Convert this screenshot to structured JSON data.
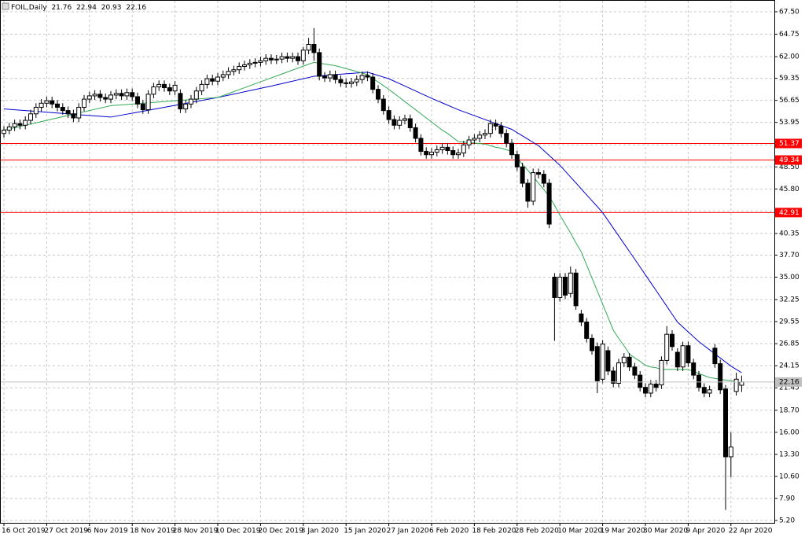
{
  "chart_data": {
    "type": "candlestick",
    "title": "FOIL,Daily",
    "categories": [
      "16 Oct 2019",
      null,
      null,
      null,
      null,
      null,
      null,
      null,
      "27 Oct 2019",
      null,
      null,
      null,
      null,
      null,
      null,
      null,
      "6 Nov 2019",
      null,
      null,
      null,
      null,
      null,
      null,
      null,
      "18 Nov 2019",
      null,
      null,
      null,
      null,
      null,
      null,
      null,
      "28 Nov 2019",
      null,
      null,
      null,
      null,
      null,
      null,
      null,
      "10 Dec 2019",
      null,
      null,
      null,
      null,
      null,
      null,
      null,
      "20 Dec 2019",
      null,
      null,
      null,
      null,
      null,
      null,
      null,
      "3 Jan 2020",
      null,
      null,
      null,
      null,
      null,
      null,
      null,
      "15 Jan 2020",
      null,
      null,
      null,
      null,
      null,
      null,
      null,
      "27 Jan 2020",
      null,
      null,
      null,
      null,
      null,
      null,
      null,
      "6 Feb 2020",
      null,
      null,
      null,
      null,
      null,
      null,
      null,
      "18 Feb 2020",
      null,
      null,
      null,
      null,
      null,
      null,
      null,
      "28 Feb 2020",
      null,
      null,
      null,
      null,
      null,
      null,
      null,
      "10 Mar 2020",
      null,
      null,
      null,
      null,
      null,
      null,
      null,
      "19 Mar 2020",
      null,
      null,
      null,
      null,
      null,
      null,
      null,
      "30 Mar 2020",
      null,
      null,
      null,
      null,
      null,
      null,
      null,
      "9 Apr 2020",
      null,
      null,
      null,
      null,
      null,
      null,
      null,
      "22 Apr 2020",
      null,
      null
    ],
    "open": [
      52.6,
      53,
      53.4,
      53.8,
      53.6,
      54.2,
      55,
      55.8,
      56.3,
      56.6,
      56.2,
      55.8,
      55.4,
      55,
      54.5,
      55.8,
      56.8,
      57.2,
      57.4,
      57,
      56.8,
      57.3,
      57.5,
      57.2,
      57.6,
      57.1,
      56.2,
      55.5,
      57.4,
      58.3,
      58.6,
      58.2,
      57.8,
      57.5,
      55.6,
      56.2,
      56.8,
      57.8,
      58.6,
      59.3,
      59,
      59.5,
      59.8,
      60.2,
      60.4,
      60.8,
      61,
      61.2,
      61.3,
      61.5,
      61.8,
      61.6,
      61.7,
      62,
      61.8,
      62,
      61.5,
      62.8,
      63.5,
      62.5,
      59.6,
      59.4,
      59.8,
      59.2,
      58.8,
      58.7,
      58.9,
      59.2,
      59.7,
      59.5,
      58,
      56.8,
      55.4,
      54.3,
      53.6,
      54.2,
      54.4,
      53.3,
      52,
      50.4,
      50,
      50.3,
      50.6,
      50.9,
      50.5,
      50,
      50.2,
      51.2,
      51.8,
      52,
      52.4,
      52.6,
      53.8,
      53.5,
      52.6,
      51.4,
      50,
      48.5,
      46.5,
      44.3,
      47.8,
      47.6,
      46.5,
      35,
      32.5,
      35,
      33,
      35.5,
      30.5,
      29.5,
      27.5,
      26.5,
      22.5,
      26,
      23.5,
      22,
      24.5,
      25.2,
      24,
      23,
      21.5,
      20.8,
      21.9,
      21.8,
      24.8,
      28,
      25.8,
      24,
      26.6,
      24.5,
      23,
      21.5,
      20.8,
      26.3,
      24.4,
      21.3,
      13,
      21,
      21.76
    ],
    "high": [
      53.5,
      53.9,
      54.3,
      54.3,
      54.7,
      55.5,
      56.3,
      56.8,
      57.1,
      57.1,
      56.7,
      56.3,
      55.9,
      55.5,
      56.3,
      57.3,
      57.7,
      57.9,
      57.9,
      57.5,
      57.8,
      58,
      58,
      58.1,
      58.1,
      57.6,
      56.7,
      57.9,
      58.8,
      59.1,
      59.1,
      58.7,
      59,
      58,
      56.7,
      57.3,
      58.3,
      59.1,
      59.8,
      59.8,
      60,
      60.3,
      60.7,
      60.9,
      61.3,
      61.5,
      61.7,
      61.8,
      62,
      62.3,
      62.3,
      62.2,
      62.5,
      62.5,
      62.5,
      62.5,
      63.2,
      64.3,
      65.5,
      63,
      60.1,
      60.3,
      60.3,
      59.7,
      59.3,
      59.4,
      59.7,
      60.2,
      60.2,
      60,
      58.5,
      57.3,
      55.9,
      54.8,
      54.7,
      54.9,
      54.9,
      53.8,
      52.5,
      50.9,
      50.8,
      51.1,
      51.4,
      51.4,
      51,
      50.7,
      51.7,
      52.3,
      52.5,
      52.9,
      53.1,
      54.3,
      54.3,
      54,
      53.1,
      51.9,
      50.5,
      49,
      47,
      48.3,
      48.3,
      48.1,
      47,
      35.5,
      35.5,
      35.5,
      36.3,
      36,
      31,
      30,
      28,
      27,
      27.3,
      26.5,
      24,
      25,
      25.7,
      25.7,
      24.5,
      23.5,
      22,
      22.4,
      22.4,
      25.3,
      29,
      28.5,
      26.3,
      27.1,
      27.1,
      25,
      23.5,
      22,
      21.7,
      26.8,
      24.9,
      21.8,
      16,
      23.3,
      22.94
    ],
    "low": [
      52.1,
      52.5,
      52.9,
      53.1,
      53.1,
      53.7,
      54.5,
      55.3,
      55.8,
      55.7,
      55.3,
      54.9,
      54.5,
      54,
      54,
      55.3,
      56.3,
      56.7,
      56.5,
      56.3,
      56.3,
      56.8,
      56.7,
      56.7,
      56.6,
      55.7,
      55,
      55,
      56.9,
      57.8,
      57.7,
      57.3,
      57.3,
      55.1,
      55.1,
      55.7,
      56.3,
      57.3,
      58.1,
      58.5,
      58.5,
      59,
      59.3,
      59.7,
      59.9,
      60.3,
      60.5,
      60.7,
      60.8,
      61,
      61.1,
      61.1,
      61.2,
      61.3,
      61.3,
      61,
      61,
      62.3,
      61.5,
      59.1,
      58.9,
      58.9,
      58.7,
      58.3,
      58.2,
      58.2,
      58.4,
      58.7,
      59,
      57.5,
      56.3,
      54.9,
      53.8,
      53.1,
      53.1,
      53.7,
      52.8,
      51.5,
      49.9,
      49.5,
      49.5,
      49.8,
      50.1,
      50,
      49.5,
      49.5,
      49.7,
      50.7,
      51.3,
      51.5,
      51.9,
      52.1,
      53,
      52.1,
      50.9,
      49.5,
      48,
      46,
      43.5,
      43.8,
      47.1,
      46,
      41,
      27.2,
      32,
      32.3,
      32.5,
      31,
      29,
      27,
      25.5,
      20.8,
      22,
      23,
      21.5,
      21.5,
      24,
      23.5,
      22.5,
      21,
      20.3,
      20.3,
      21,
      21.3,
      24.3,
      26,
      23.5,
      23.5,
      24,
      22.5,
      21,
      20.3,
      20.3,
      23.9,
      20.7,
      6.5,
      10.5,
      20.5,
      20.93
    ],
    "close": [
      53,
      53.4,
      53.8,
      53.6,
      54.2,
      55,
      55.8,
      56.3,
      56.6,
      56.2,
      55.8,
      55.4,
      55,
      54.5,
      55.8,
      56.8,
      57.2,
      57.4,
      57,
      56.8,
      57.3,
      57.5,
      57.2,
      57.6,
      57.1,
      56.2,
      55.5,
      57.4,
      58.3,
      58.6,
      58.2,
      57.8,
      58.5,
      55.6,
      56.2,
      56.8,
      57.8,
      58.6,
      59.3,
      59,
      59.5,
      59.8,
      60.2,
      60.4,
      60.8,
      61,
      61.2,
      61.3,
      61.5,
      61.8,
      61.6,
      61.7,
      62,
      61.8,
      62,
      61.5,
      62.8,
      63.5,
      62.5,
      59.6,
      59.4,
      59.8,
      59.2,
      58.8,
      58.7,
      58.9,
      59.2,
      59.7,
      59.5,
      58,
      56.8,
      55.4,
      54.3,
      53.6,
      54.2,
      54.4,
      53.3,
      52,
      50.4,
      50,
      50.3,
      50.6,
      50.9,
      50.5,
      50,
      50.2,
      51.2,
      51.8,
      52,
      52.4,
      52.6,
      53.8,
      53.5,
      52.6,
      51.4,
      50,
      48.5,
      46.5,
      44.3,
      47.8,
      47.6,
      46.5,
      41.5,
      32.5,
      35,
      32.8,
      35.5,
      31.5,
      29.5,
      27.5,
      26,
      22.3,
      26.8,
      23.5,
      22,
      24.5,
      25.2,
      24,
      23,
      21.5,
      20.8,
      21.9,
      21.5,
      24.8,
      28,
      26.5,
      24,
      26.6,
      24.5,
      23,
      21.5,
      20.8,
      21.2,
      24.4,
      21.2,
      13,
      14.2,
      22.5,
      22.16
    ],
    "moving_averages": [
      {
        "color": "#0000cc",
        "values": [
          55.6,
          55.55,
          55.5,
          55.45,
          55.4,
          55.35,
          55.3,
          55.25,
          55.2,
          55.15,
          55.1,
          55.05,
          55,
          54.95,
          54.9,
          54.85,
          54.8,
          54.75,
          54.7,
          54.65,
          54.6,
          54.72,
          54.84,
          54.96,
          55.08,
          55.2,
          55.32,
          55.44,
          55.56,
          55.68,
          55.8,
          55.92,
          56.04,
          56.16,
          56.28,
          56.4,
          56.52,
          56.64,
          56.76,
          56.88,
          57,
          57.14,
          57.28,
          57.42,
          57.56,
          57.7,
          57.84,
          57.98,
          58.12,
          58.26,
          58.4,
          58.55,
          58.7,
          58.85,
          59,
          59.15,
          59.3,
          59.45,
          59.6,
          59.65,
          59.7,
          59.75,
          59.8,
          59.85,
          59.9,
          59.95,
          60,
          60.05,
          60.1,
          59.9,
          59.7,
          59.5,
          59.3,
          59,
          58.7,
          58.4,
          58.1,
          57.8,
          57.5,
          57.2,
          56.9,
          56.62,
          56.34,
          56.06,
          55.78,
          55.5,
          55.26,
          55.02,
          54.78,
          54.54,
          54.3,
          54.06,
          53.82,
          53.58,
          53.34,
          53.1,
          52.7,
          52.3,
          51.9,
          51.5,
          51.1,
          50.5,
          49.9,
          49.3,
          48.7,
          47.98,
          47.26,
          46.54,
          45.8,
          45.08,
          44.36,
          43.64,
          42.9,
          41.95,
          41,
          40.05,
          39.1,
          38.15,
          37.2,
          36.24,
          35.28,
          34.32,
          33.36,
          32.4,
          31.43,
          30.46,
          29.5,
          28.9,
          28.3,
          27.7,
          27.1,
          26.6,
          26.1,
          25.6,
          25.1,
          24.6,
          24.1,
          23.7,
          23.3
        ]
      },
      {
        "color": "#33aa55",
        "values": [
          53,
          53.15,
          53.3,
          53.45,
          53.6,
          53.75,
          53.9,
          54.05,
          54.2,
          54.35,
          54.5,
          54.65,
          54.8,
          54.95,
          55.1,
          55.25,
          55.4,
          55.55,
          55.7,
          55.85,
          56,
          56.05,
          56.1,
          56.15,
          56.2,
          56.25,
          56.3,
          56.35,
          56.4,
          56.45,
          56.5,
          56.55,
          56.6,
          56.65,
          56.7,
          56.75,
          56.8,
          56.85,
          56.9,
          56.95,
          57,
          57.24,
          57.48,
          57.72,
          57.96,
          58.2,
          58.44,
          58.68,
          58.92,
          59.16,
          59.4,
          59.64,
          59.88,
          60.12,
          60.36,
          60.6,
          60.84,
          61.08,
          61.3,
          61.2,
          61.1,
          61,
          60.9,
          60.72,
          60.54,
          60.36,
          60.18,
          60,
          59.8,
          59.35,
          58.9,
          58.45,
          58,
          57.5,
          57,
          56.5,
          56,
          55.5,
          55,
          54.5,
          54,
          53.5,
          53,
          52.6,
          52.1,
          51.6,
          51.54,
          51.48,
          51.42,
          51.36,
          51.3,
          51.1,
          50.9,
          50.8,
          50.6,
          50.4,
          49.6,
          48.8,
          48.1,
          47.3,
          46.5,
          45.7,
          44.9,
          43.8,
          42.6,
          41.5,
          40.4,
          39.2,
          38.1,
          36.5,
          34.9,
          33.3,
          31.7,
          30.1,
          28.5,
          27.5,
          26.6,
          25.6,
          25.1,
          24.7,
          24.2,
          24,
          23.9,
          23.7,
          23.7,
          23.7,
          23.7,
          23.7,
          23.7,
          23.45,
          23.2,
          22.95,
          22.7,
          22.6,
          22.5,
          22.4,
          22.3,
          22.2,
          22
        ]
      }
    ],
    "levels": [
      {
        "value": 51.37,
        "color": "#ff0000"
      },
      {
        "value": 49.34,
        "color": "#ff0000"
      },
      {
        "value": 42.91,
        "color": "#ff0000"
      }
    ],
    "up_color": "#ffffff",
    "down_color": "#000000",
    "ylim": [
      4.91,
      68.94
    ],
    "yticks": [
      {
        "value": 67.5,
        "label": "67.50"
      },
      64.75,
      {
        "value": 62,
        "label": "62.00"
      },
      59.35,
      56.65,
      53.95,
      {
        "value": 51.2,
        "label": "51.20"
      },
      {
        "value": 48.5,
        "label": "48.50"
      },
      {
        "value": 45.8,
        "label": "45.80"
      },
      {
        "value": 43.1,
        "label": "43.10"
      },
      40.35,
      {
        "value": 37.7,
        "label": "37.70"
      },
      {
        "value": 35,
        "label": "35.00"
      },
      32.25,
      29.55,
      26.85,
      24.15,
      21.45,
      {
        "value": 18.7,
        "label": "18.70"
      },
      {
        "value": 16,
        "label": "16.00"
      },
      {
        "value": 13.3,
        "label": "13.30"
      },
      {
        "value": 10.6,
        "label": "10.60"
      },
      {
        "value": 7.9,
        "label": "7.90"
      },
      {
        "value": 5.2,
        "label": "5.20"
      }
    ],
    "grid": true
  }
}
